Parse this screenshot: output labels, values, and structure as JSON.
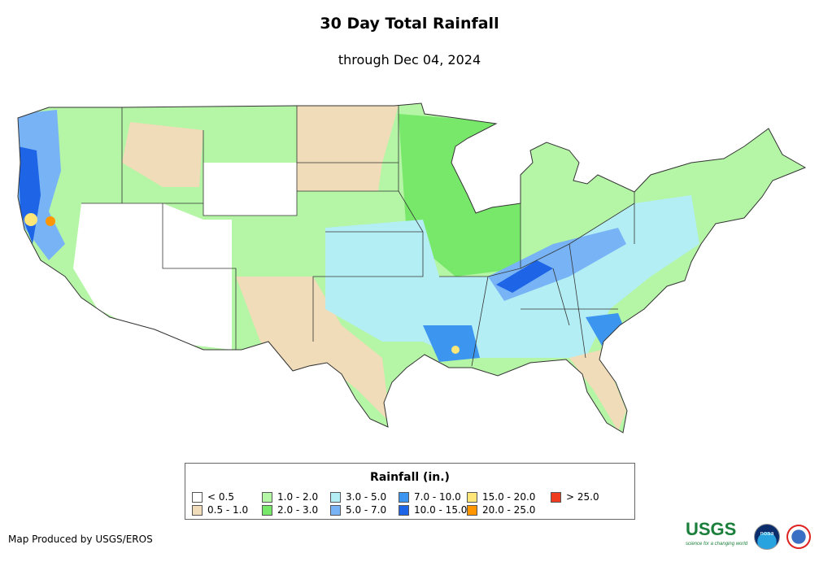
{
  "header": {
    "title": "30 Day Total Rainfall",
    "subtitle": "through Dec 04, 2024"
  },
  "legend": {
    "title": "Rainfall (in.)",
    "items": [
      {
        "label": "< 0.5",
        "color": "#ffffff"
      },
      {
        "label": "0.5 - 1.0",
        "color": "#f0dcb8"
      },
      {
        "label": "1.0 - 2.0",
        "color": "#b4f5a6"
      },
      {
        "label": "2.0 - 3.0",
        "color": "#78e86a"
      },
      {
        "label": "3.0 - 5.0",
        "color": "#b4eef5"
      },
      {
        "label": "5.0 - 7.0",
        "color": "#78b4f5"
      },
      {
        "label": "7.0 - 10.0",
        "color": "#3c96f0"
      },
      {
        "label": "10.0 - 15.0",
        "color": "#1e64e6"
      },
      {
        "label": "15.0 - 20.0",
        "color": "#ffe678"
      },
      {
        "label": "20.0 - 25.0",
        "color": "#ff9600"
      },
      {
        "label": "> 25.0",
        "color": "#f03c1e"
      }
    ]
  },
  "footer": {
    "credit": "Map Produced by USGS/EROS",
    "usgs_logo": "USGS",
    "usgs_tagline": "science for a changing world",
    "noaa_logo": "noaa"
  }
}
